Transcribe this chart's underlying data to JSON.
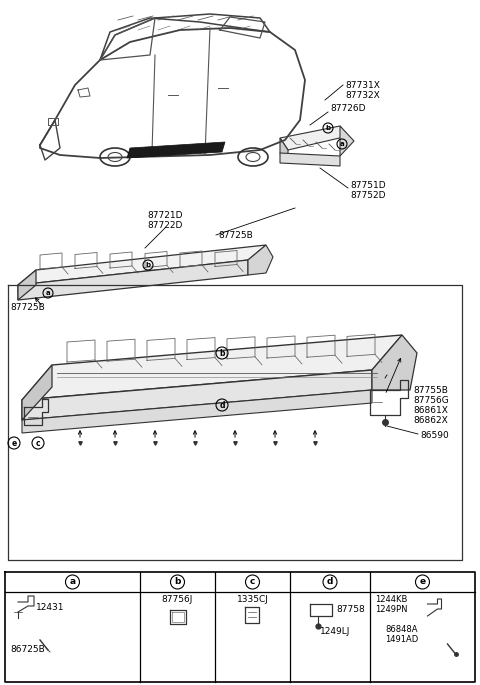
{
  "bg_color": "#ffffff",
  "line_color": "#333333",
  "labels": {
    "top_right_1": "87731X",
    "top_right_2": "87732X",
    "87726D": "87726D",
    "87721D": "87721D",
    "87722D": "87722D",
    "87725B": "87725B",
    "87751D": "87751D",
    "87752D": "87752D",
    "87755B": "87755B",
    "87756G": "87756G",
    "86861X": "86861X",
    "86862X": "86862X",
    "86590": "86590"
  },
  "bottom_table": {
    "col_a_parts": [
      "12431",
      "86725B"
    ],
    "col_b_parts": [
      "87756J"
    ],
    "col_c_parts": [
      "1335CJ"
    ],
    "col_d_parts": [
      "87758",
      "1249LJ"
    ],
    "col_e_parts": [
      "1244KB",
      "1249PN",
      "86848A",
      "1491AD"
    ]
  }
}
